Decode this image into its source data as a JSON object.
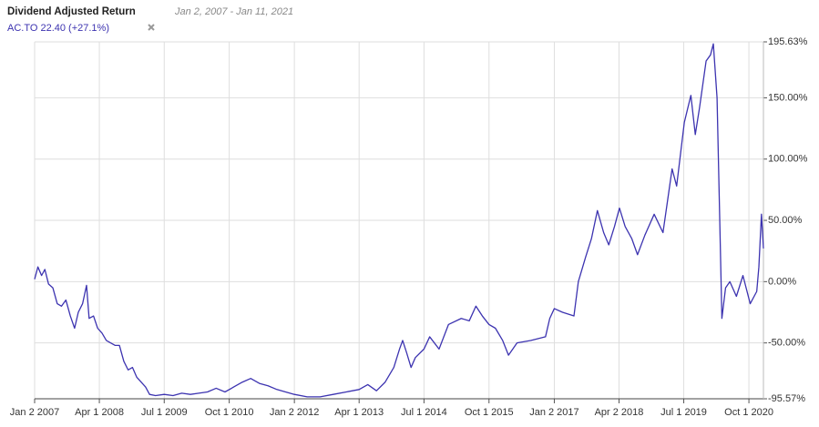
{
  "chart_data": {
    "type": "line",
    "title": "Dividend Adjusted Return",
    "subtitle": "Jan 2, 2007 - Jan 11, 2021",
    "grid": true,
    "xlim": [
      "2007-01-02",
      "2021-01-11"
    ],
    "ylim": [
      -95.57,
      195.63
    ],
    "yticks": [
      {
        "value": 195.63,
        "label": "195.63%"
      },
      {
        "value": 150,
        "label": "150.00%"
      },
      {
        "value": 100,
        "label": "100.00%"
      },
      {
        "value": 50,
        "label": "50.00%"
      },
      {
        "value": 0,
        "label": "0.00%"
      },
      {
        "value": -50,
        "label": "-50.00%"
      },
      {
        "value": -95.57,
        "label": "-95.57%"
      }
    ],
    "xticks": [
      {
        "value": "2007-01-02",
        "label": "Jan 2 2007"
      },
      {
        "value": "2008-04-01",
        "label": "Apr 1 2008"
      },
      {
        "value": "2009-07-01",
        "label": "Jul 1 2009"
      },
      {
        "value": "2010-10-01",
        "label": "Oct 1 2010"
      },
      {
        "value": "2012-01-02",
        "label": "Jan 2 2012"
      },
      {
        "value": "2013-04-01",
        "label": "Apr 1 2013"
      },
      {
        "value": "2014-07-01",
        "label": "Jul 1 2014"
      },
      {
        "value": "2015-10-01",
        "label": "Oct 1 2015"
      },
      {
        "value": "2017-01-02",
        "label": "Jan 2 2017"
      },
      {
        "value": "2018-04-02",
        "label": "Apr 2 2018"
      },
      {
        "value": "2019-07-01",
        "label": "Jul 1 2019"
      },
      {
        "value": "2020-10-01",
        "label": "Oct 1 2020"
      }
    ],
    "x": [
      "2007-01-02",
      "2007-01-25",
      "2007-02-20",
      "2007-03-15",
      "2007-04-10",
      "2007-05-10",
      "2007-06-10",
      "2007-07-10",
      "2007-08-10",
      "2007-09-10",
      "2007-10-10",
      "2007-11-05",
      "2007-12-05",
      "2008-01-02",
      "2008-01-20",
      "2008-02-20",
      "2008-03-20",
      "2008-04-20",
      "2008-05-20",
      "2008-06-20",
      "2008-07-20",
      "2008-08-20",
      "2008-09-20",
      "2008-10-20",
      "2008-11-20",
      "2008-12-20",
      "2009-01-20",
      "2009-02-20",
      "2009-03-20",
      "2009-05-01",
      "2009-07-01",
      "2009-09-01",
      "2009-11-01",
      "2010-01-01",
      "2010-03-01",
      "2010-05-01",
      "2010-07-01",
      "2010-09-01",
      "2010-11-01",
      "2011-01-01",
      "2011-03-01",
      "2011-05-01",
      "2011-07-01",
      "2011-09-01",
      "2011-11-01",
      "2012-01-02",
      "2012-04-01",
      "2012-07-01",
      "2012-10-01",
      "2013-01-01",
      "2013-04-01",
      "2013-06-01",
      "2013-08-01",
      "2013-10-01",
      "2013-12-01",
      "2014-01-10",
      "2014-02-01",
      "2014-03-01",
      "2014-04-01",
      "2014-05-01",
      "2014-07-01",
      "2014-08-10",
      "2014-10-15",
      "2014-12-20",
      "2015-03-20",
      "2015-05-15",
      "2015-07-01",
      "2015-08-15",
      "2015-10-01",
      "2015-11-15",
      "2016-01-05",
      "2016-02-15",
      "2016-04-15",
      "2016-07-20",
      "2016-11-01",
      "2016-12-01",
      "2017-01-02",
      "2017-03-01",
      "2017-05-20",
      "2017-06-20",
      "2017-08-10",
      "2017-09-20",
      "2017-11-01",
      "2017-12-15",
      "2018-01-20",
      "2018-03-01",
      "2018-04-05",
      "2018-05-15",
      "2018-07-01",
      "2018-08-10",
      "2018-10-01",
      "2018-12-05",
      "2019-02-05",
      "2019-04-10",
      "2019-05-12",
      "2019-07-05",
      "2019-08-20",
      "2019-09-20",
      "2019-10-20",
      "2019-12-05",
      "2020-01-05",
      "2020-01-25",
      "2020-02-20",
      "2020-03-10",
      "2020-03-25",
      "2020-04-20",
      "2020-05-20",
      "2020-07-05",
      "2020-08-20",
      "2020-10-10",
      "2020-11-25",
      "2020-12-10",
      "2020-12-28",
      "2021-01-11"
    ],
    "series": [
      {
        "name": "AC.TO 22.40 (+27.1%)",
        "color": "#3c33b0",
        "values": [
          2,
          12,
          5,
          10,
          -2,
          -5,
          -18,
          -20,
          -15,
          -28,
          -38,
          -25,
          -18,
          -3,
          -30,
          -28,
          -38,
          -42,
          -48,
          -50,
          -52,
          -52,
          -65,
          -72,
          -70,
          -78,
          -82,
          -86,
          -92,
          -93,
          -92,
          -93,
          -91,
          -92,
          -91,
          -90,
          -87,
          -90,
          -86,
          -82,
          -79,
          -83,
          -85,
          -88,
          -90,
          -92,
          -94,
          -94,
          -92,
          -90,
          -88,
          -84,
          -89,
          -82,
          -70,
          -55,
          -48,
          -58,
          -70,
          -62,
          -55,
          -45,
          -55,
          -35,
          -30,
          -32,
          -20,
          -28,
          -35,
          -38,
          -48,
          -60,
          -50,
          -48,
          -45,
          -30,
          -22,
          -25,
          -28,
          0,
          20,
          35,
          58,
          40,
          30,
          45,
          60,
          45,
          35,
          22,
          38,
          55,
          40,
          92,
          78,
          130,
          152,
          120,
          142,
          180,
          185,
          194,
          150,
          50,
          -30,
          -5,
          0,
          -12,
          5,
          -18,
          -8,
          12,
          55,
          27.1
        ]
      }
    ]
  }
}
